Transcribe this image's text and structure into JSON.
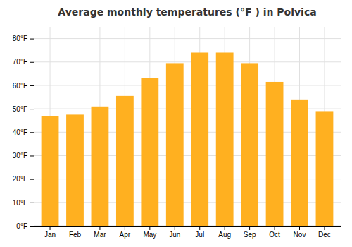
{
  "chart_data": {
    "type": "bar",
    "title": "Average monthly temperatures (°F ) in Polvica",
    "categories": [
      "Jan",
      "Feb",
      "Mar",
      "Apr",
      "May",
      "Jun",
      "Jul",
      "Aug",
      "Sep",
      "Oct",
      "Nov",
      "Dec"
    ],
    "values": [
      47,
      47.5,
      51,
      55.5,
      63,
      69.5,
      74,
      74,
      69.5,
      61.5,
      54,
      49
    ],
    "color": "#FFB020",
    "ylim": [
      0,
      85
    ],
    "yticks": [
      {
        "value": 0,
        "label": "0°F"
      },
      {
        "value": 10,
        "label": "10°F"
      },
      {
        "value": 20,
        "label": "20°F"
      },
      {
        "value": 30,
        "label": "30°F"
      },
      {
        "value": 40,
        "label": "40°F"
      },
      {
        "value": 50,
        "label": "50°F"
      },
      {
        "value": 60,
        "label": "60°F"
      },
      {
        "value": 70,
        "label": "70°F"
      },
      {
        "value": 80,
        "label": "80°F"
      }
    ],
    "grid": true
  }
}
